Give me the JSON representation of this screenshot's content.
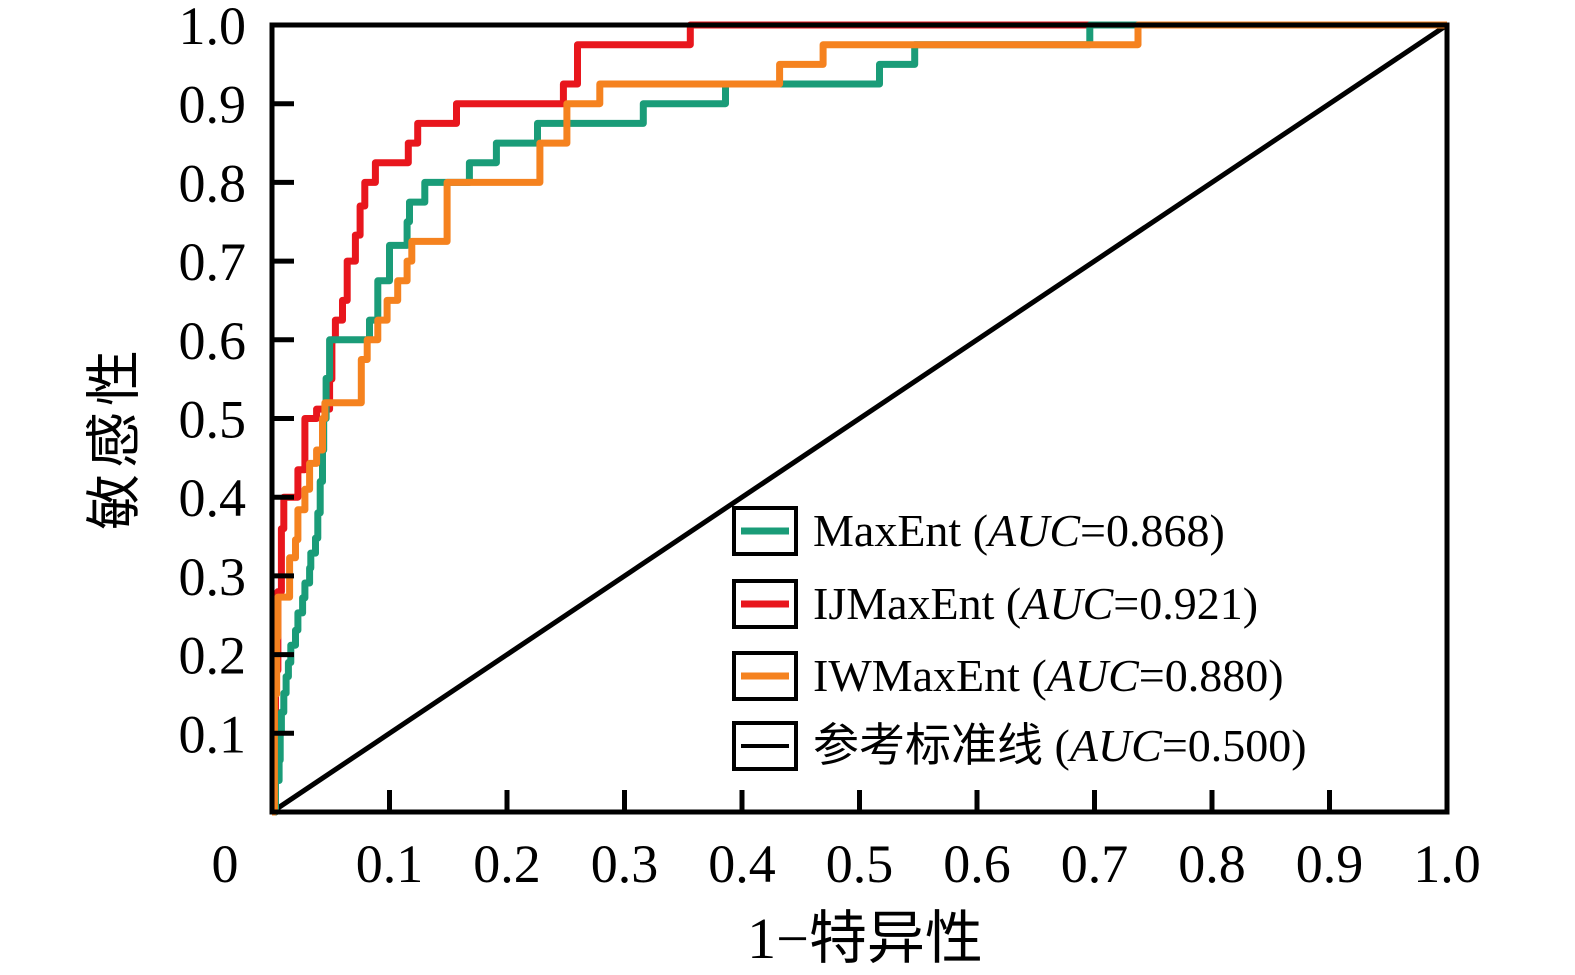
{
  "page": {
    "background": "#ffffff",
    "frame_color": "#000000"
  },
  "axes": {
    "x_title": "1−特异性",
    "y_title": "敏感性"
  },
  "legend": {
    "auc_label": "AUC",
    "open_paren": " (",
    "equals": "=",
    "close_paren": ")"
  },
  "chart_data": {
    "type": "line",
    "subtype": "roc-step-curves",
    "title": "",
    "xlabel": "1−特异性",
    "ylabel": "敏感性",
    "xlim": [
      0,
      1
    ],
    "ylim": [
      0,
      1
    ],
    "grid": false,
    "legend_position": "lower-right-inside",
    "x_ticks": [
      {
        "v": 0.0,
        "label": "0"
      },
      {
        "v": 0.1,
        "label": "0.1"
      },
      {
        "v": 0.2,
        "label": "0.2"
      },
      {
        "v": 0.3,
        "label": "0.3"
      },
      {
        "v": 0.4,
        "label": "0.4"
      },
      {
        "v": 0.5,
        "label": "0.5"
      },
      {
        "v": 0.6,
        "label": "0.6"
      },
      {
        "v": 0.7,
        "label": "0.7"
      },
      {
        "v": 0.8,
        "label": "0.8"
      },
      {
        "v": 0.9,
        "label": "0.9"
      },
      {
        "v": 1.0,
        "label": "1.0"
      }
    ],
    "y_ticks": [
      {
        "v": 0.1,
        "label": "0.1"
      },
      {
        "v": 0.2,
        "label": "0.2"
      },
      {
        "v": 0.3,
        "label": "0.3"
      },
      {
        "v": 0.4,
        "label": "0.4"
      },
      {
        "v": 0.5,
        "label": "0.5"
      },
      {
        "v": 0.6,
        "label": "0.6"
      },
      {
        "v": 0.7,
        "label": "0.7"
      },
      {
        "v": 0.8,
        "label": "0.8"
      },
      {
        "v": 0.9,
        "label": "0.9"
      },
      {
        "v": 1.0,
        "label": "1.0"
      }
    ],
    "series": [
      {
        "name": "MaxEnt",
        "slug": "maxent",
        "auc": "0.868",
        "color": "#1a9c78",
        "stroke_width": 7,
        "points": [
          [
            0,
            0
          ],
          [
            0.003,
            0
          ],
          [
            0.003,
            0.04
          ],
          [
            0.006,
            0.04
          ],
          [
            0.006,
            0.066
          ],
          [
            0.007,
            0.066
          ],
          [
            0.007,
            0.1
          ],
          [
            0.008,
            0.1
          ],
          [
            0.008,
            0.127
          ],
          [
            0.01,
            0.127
          ],
          [
            0.01,
            0.151
          ],
          [
            0.012,
            0.151
          ],
          [
            0.012,
            0.172
          ],
          [
            0.014,
            0.172
          ],
          [
            0.014,
            0.19
          ],
          [
            0.016,
            0.19
          ],
          [
            0.016,
            0.212
          ],
          [
            0.02,
            0.212
          ],
          [
            0.02,
            0.231
          ],
          [
            0.022,
            0.231
          ],
          [
            0.022,
            0.253
          ],
          [
            0.026,
            0.253
          ],
          [
            0.026,
            0.272
          ],
          [
            0.028,
            0.272
          ],
          [
            0.028,
            0.291
          ],
          [
            0.032,
            0.291
          ],
          [
            0.032,
            0.31
          ],
          [
            0.033,
            0.31
          ],
          [
            0.033,
            0.329
          ],
          [
            0.037,
            0.329
          ],
          [
            0.037,
            0.348
          ],
          [
            0.039,
            0.348
          ],
          [
            0.039,
            0.38
          ],
          [
            0.041,
            0.38
          ],
          [
            0.041,
            0.42
          ],
          [
            0.043,
            0.42
          ],
          [
            0.043,
            0.46
          ],
          [
            0.044,
            0.46
          ],
          [
            0.044,
            0.5
          ],
          [
            0.046,
            0.5
          ],
          [
            0.046,
            0.551
          ],
          [
            0.049,
            0.551
          ],
          [
            0.049,
            0.6
          ],
          [
            0.083,
            0.6
          ],
          [
            0.083,
            0.625
          ],
          [
            0.09,
            0.625
          ],
          [
            0.09,
            0.675
          ],
          [
            0.1,
            0.675
          ],
          [
            0.1,
            0.72
          ],
          [
            0.115,
            0.72
          ],
          [
            0.115,
            0.75
          ],
          [
            0.117,
            0.75
          ],
          [
            0.117,
            0.775
          ],
          [
            0.13,
            0.775
          ],
          [
            0.13,
            0.8
          ],
          [
            0.168,
            0.8
          ],
          [
            0.168,
            0.825
          ],
          [
            0.191,
            0.825
          ],
          [
            0.191,
            0.85
          ],
          [
            0.226,
            0.85
          ],
          [
            0.226,
            0.875
          ],
          [
            0.316,
            0.875
          ],
          [
            0.316,
            0.9
          ],
          [
            0.386,
            0.9
          ],
          [
            0.386,
            0.925
          ],
          [
            0.517,
            0.925
          ],
          [
            0.517,
            0.95
          ],
          [
            0.547,
            0.95
          ],
          [
            0.547,
            0.975
          ],
          [
            0.696,
            0.975
          ],
          [
            0.696,
            1.0
          ],
          [
            1,
            1
          ]
        ]
      },
      {
        "name": "IJMaxEnt",
        "slug": "ijmaxent",
        "auc": "0.921",
        "color": "#e8161d",
        "stroke_width": 7,
        "points": [
          [
            0,
            0
          ],
          [
            0.003,
            0
          ],
          [
            0.003,
            0.18
          ],
          [
            0.005,
            0.18
          ],
          [
            0.005,
            0.28
          ],
          [
            0.008,
            0.28
          ],
          [
            0.008,
            0.36
          ],
          [
            0.01,
            0.36
          ],
          [
            0.01,
            0.4
          ],
          [
            0.022,
            0.4
          ],
          [
            0.022,
            0.435
          ],
          [
            0.028,
            0.435
          ],
          [
            0.028,
            0.5
          ],
          [
            0.038,
            0.5
          ],
          [
            0.038,
            0.512
          ],
          [
            0.049,
            0.512
          ],
          [
            0.049,
            0.55
          ],
          [
            0.051,
            0.55
          ],
          [
            0.051,
            0.6
          ],
          [
            0.054,
            0.6
          ],
          [
            0.054,
            0.625
          ],
          [
            0.06,
            0.625
          ],
          [
            0.06,
            0.65
          ],
          [
            0.064,
            0.65
          ],
          [
            0.064,
            0.7
          ],
          [
            0.071,
            0.7
          ],
          [
            0.071,
            0.733
          ],
          [
            0.075,
            0.733
          ],
          [
            0.075,
            0.77
          ],
          [
            0.079,
            0.77
          ],
          [
            0.079,
            0.8
          ],
          [
            0.088,
            0.8
          ],
          [
            0.088,
            0.825
          ],
          [
            0.116,
            0.825
          ],
          [
            0.116,
            0.85
          ],
          [
            0.124,
            0.85
          ],
          [
            0.124,
            0.875
          ],
          [
            0.157,
            0.875
          ],
          [
            0.157,
            0.9
          ],
          [
            0.248,
            0.9
          ],
          [
            0.248,
            0.925
          ],
          [
            0.26,
            0.925
          ],
          [
            0.26,
            0.975
          ],
          [
            0.356,
            0.975
          ],
          [
            0.356,
            1.0
          ],
          [
            1,
            1
          ]
        ]
      },
      {
        "name": "IWMaxEnt",
        "slug": "iwmaxent",
        "auc": "0.880",
        "color": "#f5821f",
        "stroke_width": 7,
        "points": [
          [
            0,
            0
          ],
          [
            0.002,
            0
          ],
          [
            0.002,
            0.15
          ],
          [
            0.004,
            0.15
          ],
          [
            0.004,
            0.222
          ],
          [
            0.005,
            0.222
          ],
          [
            0.005,
            0.273
          ],
          [
            0.015,
            0.273
          ],
          [
            0.015,
            0.323
          ],
          [
            0.02,
            0.323
          ],
          [
            0.02,
            0.346
          ],
          [
            0.022,
            0.346
          ],
          [
            0.022,
            0.384
          ],
          [
            0.028,
            0.384
          ],
          [
            0.028,
            0.41
          ],
          [
            0.032,
            0.41
          ],
          [
            0.032,
            0.443
          ],
          [
            0.038,
            0.443
          ],
          [
            0.038,
            0.46
          ],
          [
            0.043,
            0.46
          ],
          [
            0.043,
            0.5
          ],
          [
            0.045,
            0.5
          ],
          [
            0.045,
            0.52
          ],
          [
            0.076,
            0.52
          ],
          [
            0.076,
            0.575
          ],
          [
            0.081,
            0.575
          ],
          [
            0.081,
            0.6
          ],
          [
            0.09,
            0.6
          ],
          [
            0.09,
            0.625
          ],
          [
            0.098,
            0.625
          ],
          [
            0.098,
            0.65
          ],
          [
            0.107,
            0.65
          ],
          [
            0.107,
            0.675
          ],
          [
            0.115,
            0.675
          ],
          [
            0.115,
            0.7
          ],
          [
            0.119,
            0.7
          ],
          [
            0.119,
            0.725
          ],
          [
            0.149,
            0.725
          ],
          [
            0.149,
            0.8
          ],
          [
            0.228,
            0.8
          ],
          [
            0.228,
            0.85
          ],
          [
            0.251,
            0.85
          ],
          [
            0.251,
            0.9
          ],
          [
            0.279,
            0.9
          ],
          [
            0.279,
            0.925
          ],
          [
            0.432,
            0.925
          ],
          [
            0.432,
            0.95
          ],
          [
            0.469,
            0.95
          ],
          [
            0.469,
            0.975
          ],
          [
            0.737,
            0.975
          ],
          [
            0.737,
            1.0
          ],
          [
            1,
            1
          ]
        ]
      },
      {
        "name": "参考标准线",
        "slug": "reference",
        "auc": "0.500",
        "color": "#000000",
        "stroke_width": 5,
        "points": [
          [
            0,
            0
          ],
          [
            1,
            1
          ]
        ]
      }
    ]
  }
}
